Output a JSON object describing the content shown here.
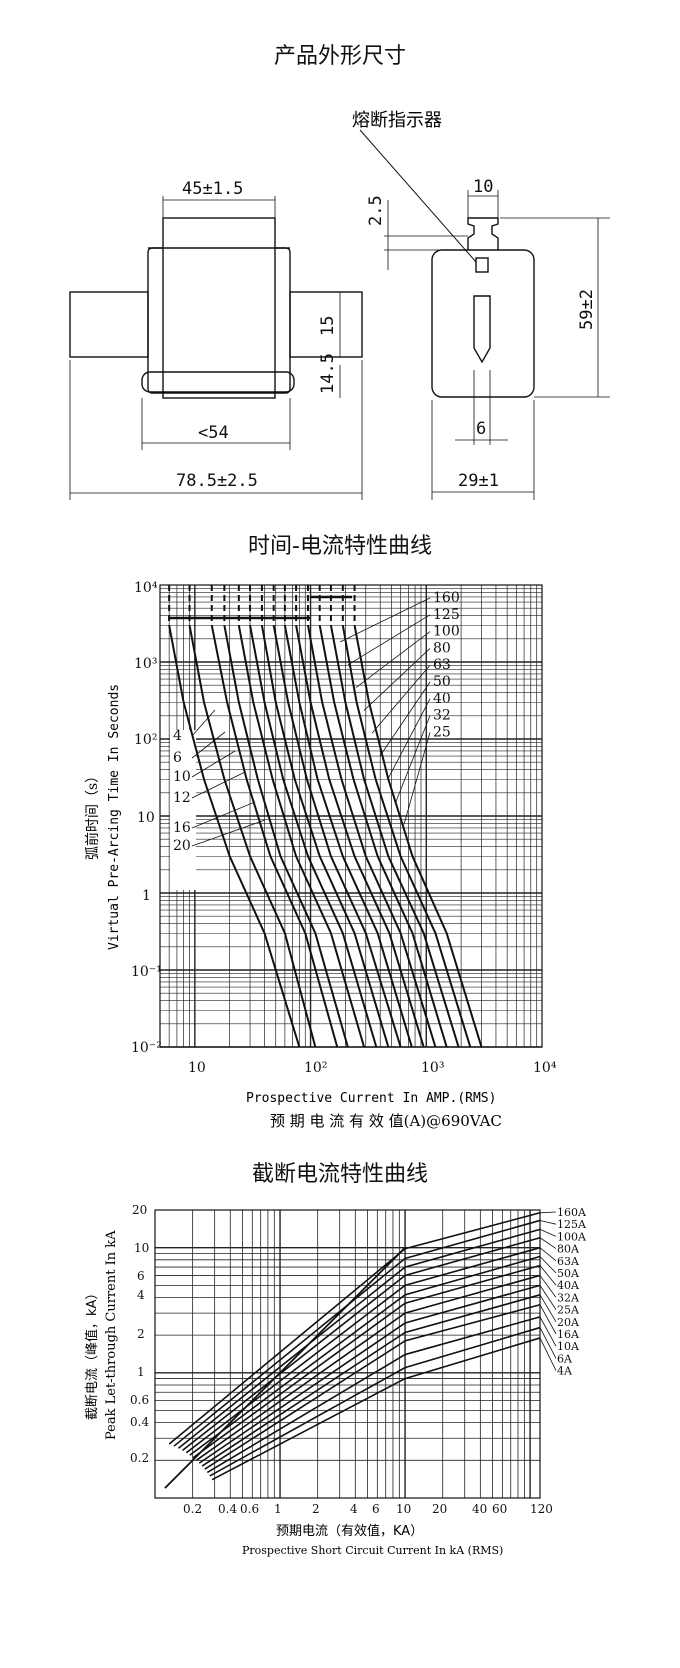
{
  "titles": {
    "dimensions": "产品外形尺寸",
    "tc_curve": "时间-电流特性曲线",
    "cutoff_curve": "截断电流特性曲线"
  },
  "dimensions": {
    "indicator_label": "熔断指示器",
    "width_body": "45±1.5",
    "overall_length": "78.5±2.5",
    "inner_length": "<54",
    "height_15": "15",
    "height_14_5": "14.5",
    "top_2_5": "2.5",
    "tab_10": "10",
    "height_59": "59±2",
    "slot_6": "6",
    "width_29": "29±1"
  },
  "tc_chart": {
    "ylabel_cn": "弧前时间（s）",
    "ylabel_en": "Virtual Pre-Arcing Time In Seconds",
    "xlabel_en": "Prospective Current In AMP.(RMS)",
    "xlabel_cn": "预 期 电 流 有 效 值(A)@690VAC",
    "y_ticks": [
      "10⁴",
      "10³",
      "10²",
      "10",
      "1",
      "10⁻¹",
      "10⁻²"
    ],
    "x_ticks": [
      "10",
      "10²",
      "10³",
      "10⁴"
    ],
    "ratings_right": [
      "160",
      "125",
      "100",
      "80",
      "63",
      "50",
      "40",
      "32",
      "25"
    ],
    "ratings_left": [
      "4",
      "6",
      "10",
      "12",
      "16",
      "20"
    ]
  },
  "cutoff_chart": {
    "ylabel_cn": "截断电流（峰值，kA）",
    "ylabel_en": "Peak Let-through Current In kA",
    "xlabel_cn": "预期电流（有效值，KA）",
    "xlabel_en": "Prospective Short Circuit Current In kA (RMS)",
    "y_ticks": [
      "20",
      "10",
      "6",
      "4",
      "2",
      "1",
      "0.6",
      "0.4",
      "0.2"
    ],
    "x_ticks": [
      "0.2",
      "0.4",
      "0.6",
      "1",
      "2",
      "4",
      "6",
      "10",
      "20",
      "40",
      "60",
      "120"
    ],
    "ratings": [
      "160A",
      "125A",
      "100A",
      "80A",
      "63A",
      "50A",
      "40A",
      "32A",
      "25A",
      "20A",
      "16A",
      "10A",
      "6A",
      "4A"
    ]
  },
  "chart_data": [
    {
      "type": "line",
      "title": "时间-电流特性曲线",
      "xlabel": "Prospective Current In AMP.(RMS)",
      "ylabel": "Virtual Pre-Arcing Time In Seconds",
      "xscale": "log",
      "yscale": "log",
      "xlim": [
        5,
        10000
      ],
      "ylim": [
        0.01,
        10000
      ],
      "series": [
        {
          "name": "4",
          "x": [
            6,
            8,
            12,
            20,
            40,
            80
          ],
          "y": [
            3000,
            300,
            30,
            3,
            0.3,
            0.01
          ]
        },
        {
          "name": "6",
          "x": [
            9,
            12,
            18,
            30,
            60,
            110
          ],
          "y": [
            3000,
            300,
            30,
            3,
            0.3,
            0.01
          ]
        },
        {
          "name": "10",
          "x": [
            14,
            19,
            28,
            45,
            90,
            170
          ],
          "y": [
            3000,
            300,
            30,
            3,
            0.3,
            0.01
          ]
        },
        {
          "name": "12",
          "x": [
            18,
            24,
            35,
            55,
            110,
            210
          ],
          "y": [
            3000,
            300,
            30,
            3,
            0.3,
            0.01
          ]
        },
        {
          "name": "16",
          "x": [
            24,
            32,
            47,
            75,
            150,
            290
          ],
          "y": [
            3000,
            300,
            30,
            3,
            0.3,
            0.01
          ]
        },
        {
          "name": "20",
          "x": [
            30,
            40,
            58,
            95,
            190,
            370
          ],
          "y": [
            3000,
            300,
            30,
            3,
            0.3,
            0.01
          ]
        },
        {
          "name": "25",
          "x": [
            38,
            50,
            73,
            120,
            240,
            470
          ],
          "y": [
            3000,
            300,
            30,
            3,
            0.3,
            0.01
          ]
        },
        {
          "name": "32",
          "x": [
            48,
            64,
            93,
            150,
            300,
            600
          ],
          "y": [
            3000,
            300,
            30,
            3,
            0.3,
            0.01
          ]
        },
        {
          "name": "40",
          "x": [
            60,
            80,
            115,
            190,
            380,
            750
          ],
          "y": [
            3000,
            300,
            30,
            3,
            0.3,
            0.01
          ]
        },
        {
          "name": "50",
          "x": [
            75,
            100,
            145,
            240,
            480,
            950
          ],
          "y": [
            3000,
            300,
            30,
            3,
            0.3,
            0.01
          ]
        },
        {
          "name": "63",
          "x": [
            95,
            126,
            185,
            300,
            600,
            1200
          ],
          "y": [
            3000,
            300,
            30,
            3,
            0.3,
            0.01
          ]
        },
        {
          "name": "80",
          "x": [
            120,
            160,
            235,
            380,
            760,
            1500
          ],
          "y": [
            3000,
            300,
            30,
            3,
            0.3,
            0.01
          ]
        },
        {
          "name": "100",
          "x": [
            150,
            200,
            290,
            470,
            950,
            1900
          ],
          "y": [
            3000,
            300,
            30,
            3,
            0.3,
            0.01
          ]
        },
        {
          "name": "125",
          "x": [
            190,
            250,
            365,
            600,
            1200,
            2400
          ],
          "y": [
            3000,
            300,
            30,
            3,
            0.3,
            0.01
          ]
        },
        {
          "name": "160",
          "x": [
            240,
            320,
            470,
            760,
            1500,
            3000
          ],
          "y": [
            3000,
            300,
            30,
            3,
            0.3,
            0.01
          ]
        }
      ]
    },
    {
      "type": "line",
      "title": "截断电流特性曲线",
      "xlabel": "Prospective Short Circuit Current In kA (RMS)",
      "ylabel": "Peak Let-through Current In kA",
      "xscale": "log",
      "yscale": "log",
      "xlim": [
        0.1,
        120
      ],
      "ylim": [
        0.1,
        20
      ],
      "series": [
        {
          "name": "160A",
          "x": [
            0.1,
            10,
            120
          ],
          "y": [
            0.14,
            9.8,
            19
          ]
        },
        {
          "name": "125A",
          "x": [
            0.1,
            10,
            120
          ],
          "y": [
            0.14,
            8.2,
            16.5
          ]
        },
        {
          "name": "100A",
          "x": [
            0.1,
            10,
            120
          ],
          "y": [
            0.14,
            7.0,
            14
          ]
        },
        {
          "name": "80A",
          "x": [
            0.1,
            10,
            120
          ],
          "y": [
            0.14,
            6.0,
            12
          ]
        },
        {
          "name": "63A",
          "x": [
            0.1,
            10,
            120
          ],
          "y": [
            0.14,
            5.0,
            10
          ]
        },
        {
          "name": "50A",
          "x": [
            0.1,
            10,
            120
          ],
          "y": [
            0.14,
            4.2,
            8.5
          ]
        },
        {
          "name": "40A",
          "x": [
            0.1,
            10,
            120
          ],
          "y": [
            0.14,
            3.6,
            7.2
          ]
        },
        {
          "name": "32A",
          "x": [
            0.1,
            10,
            120
          ],
          "y": [
            0.14,
            3.0,
            6.0
          ]
        },
        {
          "name": "25A",
          "x": [
            0.1,
            10,
            120
          ],
          "y": [
            0.14,
            2.5,
            5.0
          ]
        },
        {
          "name": "20A",
          "x": [
            0.1,
            10,
            120
          ],
          "y": [
            0.14,
            2.1,
            4.2
          ]
        },
        {
          "name": "16A",
          "x": [
            0.1,
            10,
            120
          ],
          "y": [
            0.14,
            1.8,
            3.5
          ]
        },
        {
          "name": "10A",
          "x": [
            0.1,
            10,
            120
          ],
          "y": [
            0.14,
            1.4,
            2.8
          ]
        },
        {
          "name": "6A",
          "x": [
            0.1,
            10,
            120
          ],
          "y": [
            0.14,
            1.1,
            2.3
          ]
        },
        {
          "name": "4A",
          "x": [
            0.1,
            10,
            120
          ],
          "y": [
            0.14,
            0.9,
            1.9
          ]
        }
      ]
    }
  ]
}
